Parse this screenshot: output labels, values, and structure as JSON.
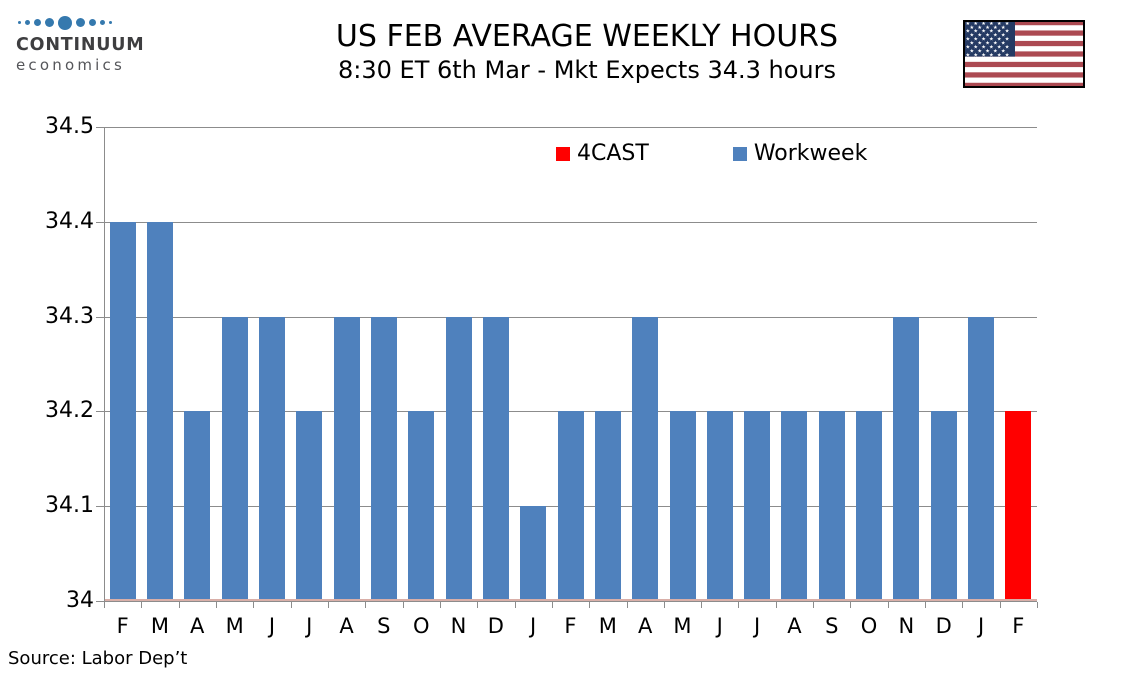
{
  "branding": {
    "name": "CONTINUUM",
    "tagline": "economics",
    "dot_color": "#3579AE"
  },
  "icons": {
    "flag": "us-flag",
    "logo_dots": "continuum-dots-row"
  },
  "chart_data": {
    "type": "bar",
    "title": "US FEB AVERAGE WEEKLY HOURS",
    "subtitle": "8:30 ET 6th Mar - Mkt Expects 34.3 hours",
    "source": "Source: Labor Dep’t",
    "categories": [
      "F",
      "M",
      "A",
      "M",
      "J",
      "J",
      "A",
      "S",
      "O",
      "N",
      "D",
      "J",
      "F",
      "M",
      "A",
      "M",
      "J",
      "J",
      "A",
      "S",
      "O",
      "N",
      "D",
      "J",
      "F"
    ],
    "values": [
      34.4,
      34.4,
      34.2,
      34.3,
      34.3,
      34.2,
      34.3,
      34.3,
      34.2,
      34.3,
      34.3,
      34.1,
      34.2,
      34.2,
      34.3,
      34.2,
      34.2,
      34.2,
      34.2,
      34.2,
      34.2,
      34.3,
      34.2,
      34.3,
      34.2
    ],
    "series_assignment": [
      "Workweek",
      "Workweek",
      "Workweek",
      "Workweek",
      "Workweek",
      "Workweek",
      "Workweek",
      "Workweek",
      "Workweek",
      "Workweek",
      "Workweek",
      "Workweek",
      "Workweek",
      "Workweek",
      "Workweek",
      "Workweek",
      "Workweek",
      "Workweek",
      "Workweek",
      "Workweek",
      "Workweek",
      "Workweek",
      "Workweek",
      "Workweek",
      "4CAST"
    ],
    "legend": [
      {
        "label": "4CAST",
        "color": "#FF0000"
      },
      {
        "label": "Workweek",
        "color": "#4F81BD"
      }
    ],
    "legend_position": "top-center-inside",
    "grid": true,
    "ylim": [
      34,
      34.5
    ],
    "yticks": [
      34,
      34.1,
      34.2,
      34.3,
      34.4,
      34.5
    ],
    "ytick_labels": [
      "34",
      "34.1",
      "34.2",
      "34.3",
      "34.4",
      "34.5"
    ],
    "xlabel": "",
    "ylabel": ""
  }
}
